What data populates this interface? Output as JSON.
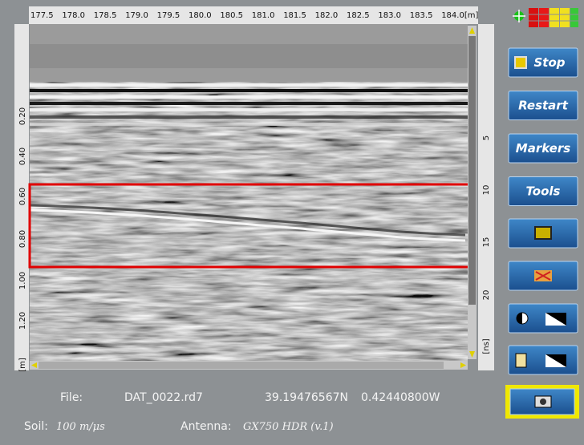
{
  "toolbar": {
    "buttons": [
      "Stop",
      "Restart",
      "Markers",
      "Tools"
    ]
  },
  "radargram": {
    "distance_ticks": [
      "177.5",
      "178.0",
      "178.5",
      "179.0",
      "179.5",
      "180.0",
      "180.5",
      "181.0",
      "181.5",
      "182.0",
      "182.5",
      "183.0",
      "183.5",
      "184.0[m]"
    ],
    "depth_ticks": [
      "0.20",
      "0.40",
      "0.60",
      "0.80",
      "1.00",
      "1.20",
      "[m]"
    ],
    "time_ticks": [
      "5",
      "10",
      "15",
      "20",
      "[ns]"
    ]
  },
  "status": {
    "file_label": "File:",
    "file": "DAT_0022.rd7",
    "latitude": "39.19476567N",
    "longitude": "0.42440800W",
    "soil_label": "Soil:",
    "soil": "100 m/μs",
    "antenna_label": "Antenna:",
    "antenna": "GX750 HDR (v.1)"
  }
}
